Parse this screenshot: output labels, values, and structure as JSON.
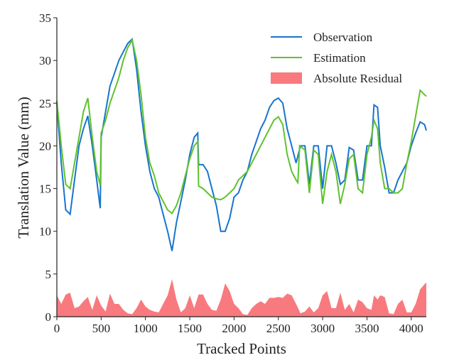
{
  "chart_data": {
    "type": "line",
    "xlabel": "Tracked Points",
    "ylabel": "Translation Value (mm)",
    "xlim": [
      0,
      4170
    ],
    "ylim": [
      0,
      35
    ],
    "xticks": [
      0,
      500,
      1000,
      1500,
      2000,
      2500,
      3000,
      3500,
      4000
    ],
    "yticks": [
      0,
      5,
      10,
      15,
      20,
      25,
      30,
      35
    ],
    "legend": "upper right",
    "grid": false,
    "series": [
      {
        "name": "Observation",
        "color": "#1874cd",
        "style": "line",
        "x": [
          0,
          50,
          100,
          150,
          200,
          250,
          300,
          350,
          400,
          450,
          490,
          500,
          550,
          600,
          650,
          700,
          750,
          800,
          850,
          900,
          950,
          1000,
          1050,
          1100,
          1150,
          1200,
          1250,
          1300,
          1350,
          1400,
          1450,
          1500,
          1550,
          1590,
          1600,
          1650,
          1700,
          1750,
          1800,
          1850,
          1900,
          1950,
          2000,
          2050,
          2100,
          2150,
          2200,
          2250,
          2300,
          2350,
          2400,
          2450,
          2500,
          2550,
          2600,
          2650,
          2700,
          2750,
          2800,
          2850,
          2900,
          2950,
          3000,
          3050,
          3100,
          3150,
          3200,
          3250,
          3300,
          3350,
          3400,
          3450,
          3500,
          3550,
          3580,
          3620,
          3650,
          3700,
          3750,
          3800,
          3850,
          3900,
          3950,
          4000,
          4050,
          4100,
          4150,
          4170
        ],
        "values": [
          25,
          18,
          12.5,
          12,
          16,
          20,
          22,
          23.5,
          20,
          16,
          12.7,
          21,
          24,
          27,
          28.5,
          30,
          31,
          32,
          32.5,
          29,
          24,
          20,
          17,
          15,
          14,
          12,
          10,
          7.7,
          11,
          13.5,
          16,
          19,
          21,
          21.5,
          17.8,
          17.8,
          17,
          15,
          13,
          10,
          10,
          11.5,
          14,
          14.5,
          16,
          17,
          19,
          20.5,
          22,
          23,
          24.5,
          25.3,
          25.6,
          25,
          22,
          20,
          18,
          20,
          20,
          15.5,
          20,
          20,
          15,
          20,
          20,
          18,
          15.5,
          16,
          19.8,
          19.5,
          16,
          16,
          20,
          20,
          24.8,
          24.5,
          20,
          17.5,
          14.5,
          14.5,
          16,
          17,
          18,
          20,
          21.5,
          22.8,
          22.5,
          21.8
        ]
      },
      {
        "name": "Estimation",
        "color": "#5fc22e",
        "style": "line",
        "x": [
          0,
          50,
          100,
          150,
          200,
          250,
          300,
          350,
          400,
          450,
          490,
          500,
          550,
          600,
          650,
          700,
          750,
          800,
          850,
          900,
          950,
          1000,
          1050,
          1100,
          1150,
          1200,
          1250,
          1300,
          1350,
          1400,
          1450,
          1500,
          1550,
          1590,
          1600,
          1650,
          1700,
          1750,
          1800,
          1850,
          1900,
          1950,
          2000,
          2050,
          2100,
          2150,
          2200,
          2250,
          2300,
          2350,
          2400,
          2450,
          2500,
          2550,
          2600,
          2650,
          2700,
          2720,
          2740,
          2800,
          2850,
          2900,
          2950,
          3000,
          3050,
          3100,
          3150,
          3200,
          3250,
          3300,
          3350,
          3400,
          3450,
          3500,
          3550,
          3580,
          3620,
          3650,
          3700,
          3750,
          3800,
          3850,
          3900,
          3950,
          4000,
          4050,
          4100,
          4150,
          4170
        ],
        "values": [
          25.3,
          20,
          15.5,
          15,
          18,
          21,
          24,
          25.6,
          21,
          17,
          15.4,
          21.5,
          23,
          25,
          26.5,
          28,
          30,
          31.5,
          32.4,
          30,
          26,
          21,
          18,
          16.5,
          14.5,
          13.5,
          12.5,
          12.1,
          13,
          14.5,
          16.5,
          18.5,
          20,
          20.5,
          15.3,
          15,
          14.5,
          14,
          13.8,
          13.7,
          14,
          14.5,
          15,
          16,
          16.5,
          17,
          18,
          19,
          20,
          21,
          22,
          23,
          23.4,
          22.5,
          19,
          17,
          16,
          15.7,
          20,
          19.5,
          14.5,
          19.5,
          19,
          13.2,
          17,
          19,
          17,
          13.2,
          15.5,
          18.5,
          19,
          15,
          14.5,
          19,
          21,
          23,
          22,
          18,
          15,
          15,
          14.5,
          14.5,
          15,
          18,
          20.5,
          23.5,
          26.5,
          26,
          25.8
        ]
      },
      {
        "name": "Absolute Residual",
        "color": "#f87a7e",
        "style": "area",
        "x": [
          0,
          50,
          100,
          150,
          200,
          250,
          300,
          350,
          400,
          450,
          500,
          550,
          600,
          650,
          700,
          750,
          800,
          850,
          900,
          950,
          1000,
          1050,
          1100,
          1150,
          1200,
          1250,
          1300,
          1350,
          1400,
          1450,
          1500,
          1550,
          1600,
          1650,
          1700,
          1750,
          1800,
          1850,
          1900,
          1950,
          2000,
          2050,
          2100,
          2150,
          2200,
          2250,
          2300,
          2350,
          2400,
          2450,
          2500,
          2550,
          2600,
          2650,
          2700,
          2750,
          2800,
          2850,
          2900,
          2950,
          3000,
          3050,
          3100,
          3150,
          3200,
          3250,
          3300,
          3350,
          3400,
          3450,
          3500,
          3550,
          3580,
          3620,
          3650,
          3700,
          3750,
          3800,
          3850,
          3900,
          3950,
          4000,
          4050,
          4100,
          4150,
          4170
        ],
        "values": [
          2.5,
          1.5,
          2.6,
          2.8,
          1,
          1.2,
          1.8,
          2.3,
          0.8,
          2.5,
          1.3,
          0.6,
          2.7,
          1.5,
          1.5,
          0.8,
          0.4,
          0.3,
          1,
          2,
          1.2,
          0.8,
          0.6,
          0.5,
          1.5,
          2.5,
          4.4,
          2,
          0.5,
          1,
          2.5,
          1,
          2.6,
          2.6,
          1.5,
          0.8,
          0.7,
          2,
          3.9,
          3,
          1.5,
          1,
          0.3,
          0.2,
          1,
          1.5,
          1.8,
          1.5,
          2.2,
          2.2,
          2.3,
          2.2,
          2.7,
          2.5,
          1.5,
          0.4,
          0.6,
          1.2,
          0.5,
          1,
          2.5,
          3,
          1,
          1,
          2.8,
          0.8,
          1.5,
          0.5,
          2,
          1.7,
          1,
          0.8,
          2.5,
          2,
          2.5,
          2.3,
          0.4,
          0.3,
          1.5,
          2,
          0.5,
          0.5,
          1.5,
          3.2,
          3.8,
          4
        ]
      }
    ]
  }
}
